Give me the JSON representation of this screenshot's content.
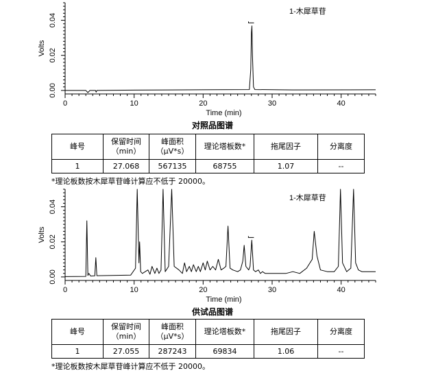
{
  "chart_data": [
    {
      "type": "line",
      "xlabel": "Time (min)",
      "ylabel": "Volts",
      "xlim": [
        0,
        45
      ],
      "ylim": [
        -0.002,
        0.05
      ],
      "xticks": [
        0,
        10,
        20,
        30,
        40
      ],
      "yticks": [
        "0.00",
        "0.02",
        "0.04"
      ],
      "grid": false,
      "annotation": {
        "text": "1-木犀草苷",
        "position": "top-right"
      },
      "peak_marker": {
        "x": 27.07,
        "y": 0.0385
      },
      "series": [
        {
          "x": [
            0,
            3,
            3.3,
            3.6,
            4.4,
            4.5,
            4.6,
            10,
            20,
            26.7,
            26.9,
            27.0,
            27.07,
            27.15,
            27.3,
            27.5,
            33,
            45
          ],
          "y": [
            0,
            0,
            -0.0012,
            0,
            0,
            -0.001,
            0,
            0.0002,
            0.0004,
            0.0005,
            0.012,
            0.033,
            0.0368,
            0.02,
            0.002,
            0.0005,
            0.0003,
            0.0004
          ]
        }
      ]
    },
    {
      "type": "line",
      "xlabel": "Time (min)",
      "ylabel": "Volts",
      "xlim": [
        0,
        45
      ],
      "ylim": [
        -0.002,
        0.05
      ],
      "xticks": [
        0,
        10,
        20,
        30,
        40
      ],
      "yticks": [
        "0.00",
        "0.02",
        "0.04"
      ],
      "grid": false,
      "annotation": {
        "text": "1-木犀草苷",
        "position": "top-right"
      },
      "peak_marker": {
        "x": 27.06,
        "y": 0.0225
      },
      "series": [
        {
          "x": [
            0,
            3.0,
            3.15,
            3.3,
            3.45,
            3.7,
            4.3,
            4.45,
            4.6,
            9.5,
            10.2,
            10.45,
            10.7,
            10.8,
            10.95,
            11.2,
            12.0,
            12.3,
            12.6,
            13.0,
            13.3,
            13.6,
            13.9,
            14.2,
            14.5,
            15.0,
            15.45,
            15.8,
            16.5,
            17.0,
            17.3,
            17.6,
            18.0,
            18.3,
            18.6,
            19.0,
            19.3,
            19.6,
            20.0,
            20.3,
            20.6,
            21.0,
            21.4,
            21.8,
            22.2,
            22.6,
            23.0,
            23.3,
            23.6,
            23.9,
            24.3,
            25.0,
            25.4,
            25.75,
            25.95,
            26.2,
            26.6,
            26.8,
            27.05,
            27.3,
            27.6,
            28.0,
            28.3,
            28.6,
            29.0,
            32.0,
            33.0,
            34.0,
            35.0,
            35.8,
            36.1,
            36.5,
            37.0,
            38.0,
            39.0,
            39.6,
            39.9,
            40.2,
            40.8,
            41.4,
            41.8,
            42.1,
            42.5,
            43.0,
            45.0
          ],
          "y": [
            0.0002,
            0.0003,
            0.032,
            0.0008,
            0.002,
            0.0005,
            0.0006,
            0.011,
            0.0007,
            0.001,
            0.005,
            0.05,
            0.008,
            0.02,
            0.003,
            0.002,
            0.004,
            0.0015,
            0.006,
            0.002,
            0.005,
            0.002,
            0.004,
            0.05,
            0.003,
            0.006,
            0.05,
            0.006,
            0.004,
            0.002,
            0.008,
            0.003,
            0.006,
            0.003,
            0.007,
            0.003,
            0.006,
            0.003,
            0.008,
            0.004,
            0.009,
            0.004,
            0.006,
            0.004,
            0.01,
            0.004,
            0.005,
            0.006,
            0.029,
            0.005,
            0.004,
            0.003,
            0.004,
            0.009,
            0.018,
            0.006,
            0.004,
            0.006,
            0.021,
            0.004,
            0.003,
            0.004,
            0.002,
            0.003,
            0.002,
            0.002,
            0.003,
            0.002,
            0.005,
            0.01,
            0.026,
            0.012,
            0.004,
            0.003,
            0.003,
            0.006,
            0.05,
            0.008,
            0.003,
            0.005,
            0.05,
            0.008,
            0.004,
            0.003,
            0.003
          ]
        }
      ]
    }
  ],
  "figure1": {
    "title": "对照品图谱"
  },
  "figure2": {
    "title": "供试品图谱"
  },
  "table_headers": {
    "peak_no": "峰号",
    "rt_line1": "保留时间",
    "rt_line2": "（min）",
    "area_line1": "峰面积",
    "area_line2": "（μV*s）",
    "plates": "理论塔板数*",
    "tailing": "拖尾因子",
    "resolution": "分离度"
  },
  "table_ref": {
    "peak_no": "1",
    "rt": "27.068",
    "area": "567135",
    "plates": "68755",
    "tailing": "1.07",
    "resolution": "--"
  },
  "table_sample": {
    "peak_no": "1",
    "rt": "27.055",
    "area": "287243",
    "plates": "69834",
    "tailing": "1.06",
    "resolution": "--"
  },
  "note": "*理论板数按木犀草苷峰计算应不低于 20000。",
  "colors": {
    "trace": "#000000",
    "axis": "#000000"
  }
}
